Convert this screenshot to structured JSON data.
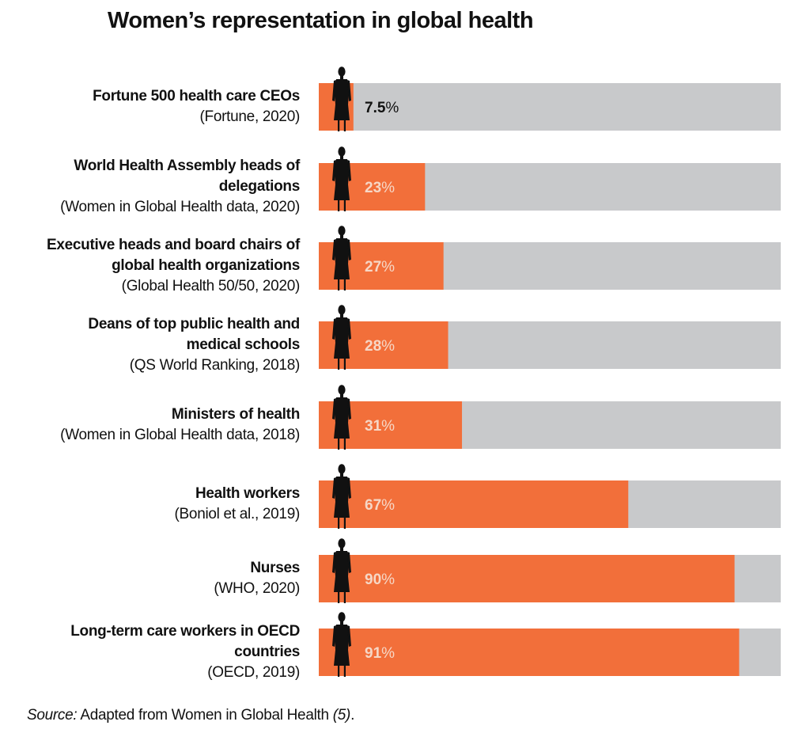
{
  "title": "Women’s representation in global health",
  "source": {
    "prefix": "Source:",
    "text": " Adapted from Women in Global Health ",
    "ref": "(5)",
    "suffix": "."
  },
  "colors": {
    "bar_fill": "#f26f3a",
    "bar_track": "#c8c9cb",
    "figure": "#111111",
    "value_on_bar": "#f6d7c6",
    "value_off_bar": "#111111"
  },
  "chart_data": {
    "type": "bar",
    "orientation": "horizontal",
    "ylim": [
      0,
      100
    ],
    "unit": "%",
    "categories": [
      {
        "name_lines": [
          "Fortune 500 health care CEOs"
        ],
        "source": "(Fortune, 2020)",
        "value": 7.5,
        "value_label": "7.5"
      },
      {
        "name_lines": [
          "World Health Assembly heads of",
          "delegations"
        ],
        "source": "(Women in Global Health data, 2020)",
        "value": 23,
        "value_label": "23"
      },
      {
        "name_lines": [
          "Executive heads and board chairs of",
          "global health organizations"
        ],
        "source": "(Global Health 50/50, 2020)",
        "value": 27,
        "value_label": "27"
      },
      {
        "name_lines": [
          "Deans of top public health and",
          "medical schools"
        ],
        "source": "(QS World Ranking, 2018)",
        "value": 28,
        "value_label": "28"
      },
      {
        "name_lines": [
          "Ministers of health"
        ],
        "source": "(Women in Global Health data, 2018)",
        "value": 31,
        "value_label": "31"
      },
      {
        "name_lines": [
          "Health workers"
        ],
        "source": "(Boniol et al., 2019)",
        "value": 67,
        "value_label": "67"
      },
      {
        "name_lines": [
          "Nurses"
        ],
        "source": "(WHO, 2020)",
        "value": 90,
        "value_label": "90"
      },
      {
        "name_lines": [
          "Long-term care workers in OECD",
          "countries"
        ],
        "source": "(OECD, 2019)",
        "value": 91,
        "value_label": "91"
      }
    ]
  }
}
